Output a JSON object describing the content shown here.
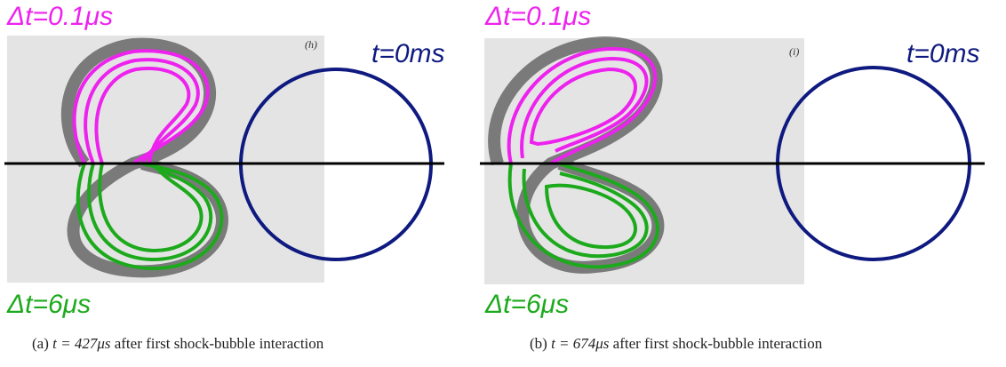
{
  "panels": [
    {
      "early_label": "Δt=0.1μs",
      "circle_label": "t=0ms",
      "late_label": "Δt=6μs",
      "image_tag": "(h)",
      "caption": {
        "label": "(a)",
        "math": "t = 427μs",
        "text": "after first shock-bubble interaction"
      }
    },
    {
      "early_label": "Δt=0.1μs",
      "circle_label": "t=0ms",
      "late_label": "Δt=6μs",
      "image_tag": "(i)",
      "caption": {
        "label": "(b)",
        "math": "t = 674μs",
        "text": "after first shock-bubble interaction"
      }
    }
  ]
}
